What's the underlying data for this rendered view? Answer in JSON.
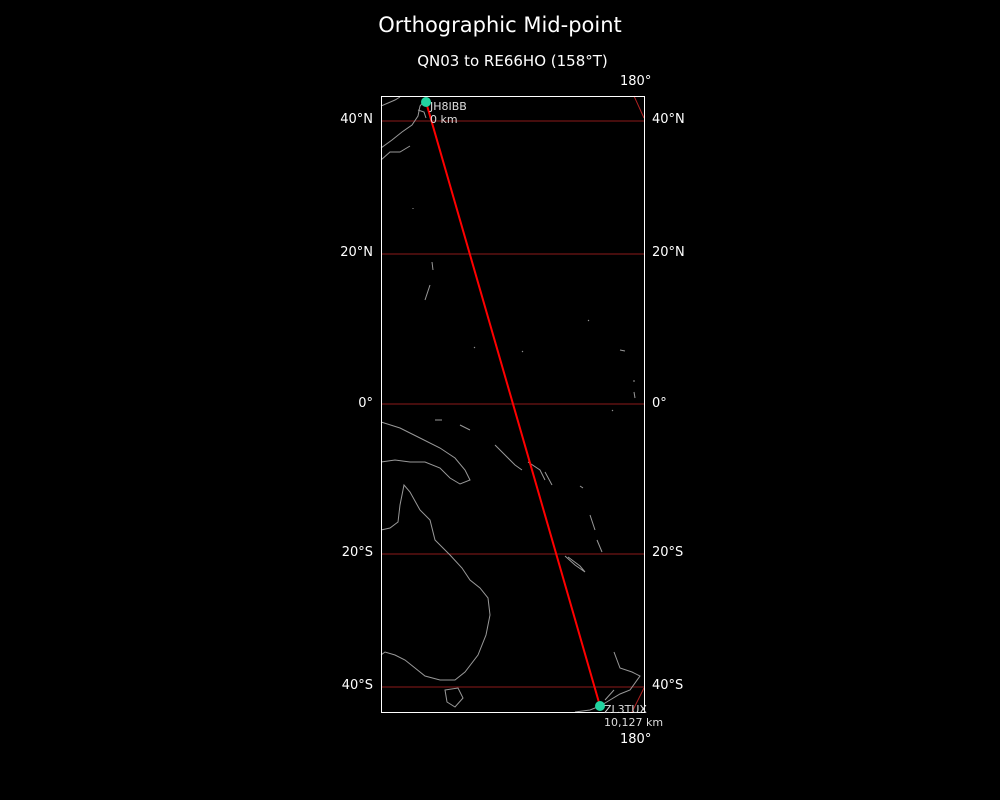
{
  "title": "Orthographic Mid-point",
  "subtitle": "QN03 to RE66HO (158°T)",
  "meridian_labels": {
    "top": "180°",
    "bottom": "180°"
  },
  "lat_labels": [
    "40°N",
    "20°N",
    "0°",
    "20°S",
    "40°S"
  ],
  "stations": {
    "start": {
      "call": "JH8IBB",
      "distance": "0 km"
    },
    "end": {
      "call": "ZL3TUX",
      "distance": "10,127 km"
    }
  },
  "colors": {
    "path": "#ff0000",
    "station": "#22d3a0",
    "grid": "#8b1a1a",
    "coast": "#999999"
  }
}
